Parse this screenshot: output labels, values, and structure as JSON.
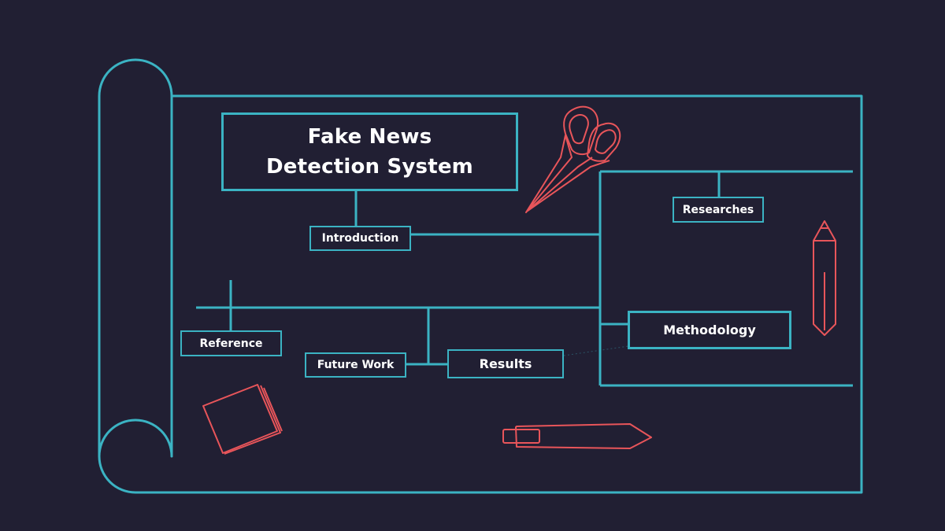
{
  "title": "Fake News Detection System",
  "nodes": {
    "introduction": "Introduction",
    "researches": "Researches",
    "methodology": "Methodology",
    "reference": "Reference",
    "future_work": "Future Work",
    "results": "Results"
  },
  "colors": {
    "background": "#211f33",
    "line": "#3bb3c3",
    "accent": "#e8555a",
    "text": "#ffffff"
  },
  "icons": [
    "scroll-icon",
    "scissors-icon",
    "pencil-icon",
    "paper-stack-icon",
    "pen-icon"
  ]
}
